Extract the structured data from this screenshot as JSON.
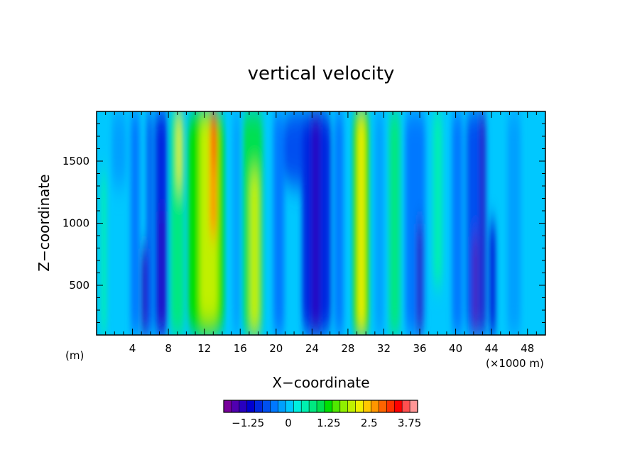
{
  "chart_data": {
    "type": "heatmap",
    "title": "vertical velocity",
    "xlabel": "X−coordinate",
    "ylabel": "Z−coordinate",
    "x_unit_left": "(m)",
    "x_unit_right": "(×1000 m)",
    "xlim": [
      0,
      50
    ],
    "ylim": [
      100,
      1900
    ],
    "x_ticks": [
      4,
      8,
      12,
      16,
      20,
      24,
      28,
      32,
      36,
      40,
      44,
      48
    ],
    "y_ticks": [
      500,
      1000,
      1500
    ],
    "colorbar": {
      "min": -2.0,
      "max": 4.0,
      "step": 0.25,
      "tick_values": [
        -1.25,
        0,
        1.25,
        2.5,
        3.75
      ],
      "tick_labels": [
        "−1.25",
        "0",
        "1.25",
        "2.5",
        "3.75"
      ],
      "colors": [
        "#78009c",
        "#5000b0",
        "#2800c0",
        "#0000d0",
        "#0028e0",
        "#0050f0",
        "#0078ff",
        "#00a0ff",
        "#00c8ff",
        "#00f0e0",
        "#00f0b0",
        "#00e880",
        "#00e050",
        "#00e000",
        "#50e800",
        "#90f000",
        "#c0f000",
        "#f0f000",
        "#ffc800",
        "#ff9600",
        "#ff6400",
        "#ff3200",
        "#ff0000",
        "#ff5050",
        "#ff9696"
      ]
    },
    "background_value": 0.0,
    "columns": [
      {
        "x": 0.8,
        "width": 0.6,
        "z_bottom": 100,
        "z_top": 1400,
        "value": 0.6
      },
      {
        "x": 2.5,
        "width": 1.6,
        "z_bottom": 1300,
        "z_top": 1900,
        "value": -0.25
      },
      {
        "x": 4.3,
        "width": 1.0,
        "z_bottom": 100,
        "z_top": 1900,
        "value": -0.5
      },
      {
        "x": 5.3,
        "width": 0.6,
        "z_bottom": 100,
        "z_top": 800,
        "value": -1.5
      },
      {
        "x": 5.9,
        "width": 0.6,
        "z_bottom": 100,
        "z_top": 1900,
        "value": -0.75
      },
      {
        "x": 7.2,
        "width": 1.4,
        "z_bottom": 100,
        "z_top": 1900,
        "value": -1.0
      },
      {
        "x": 7.3,
        "width": 0.6,
        "z_bottom": 100,
        "z_top": 1100,
        "value": -1.5
      },
      {
        "x": 9.0,
        "width": 1.5,
        "z_bottom": 100,
        "z_top": 1900,
        "value": 0.75
      },
      {
        "x": 9.2,
        "width": 0.5,
        "z_bottom": 1300,
        "z_top": 1900,
        "value": 2.25
      },
      {
        "x": 12.2,
        "width": 4.0,
        "z_bottom": 100,
        "z_top": 1900,
        "value": 1.25
      },
      {
        "x": 12.5,
        "width": 2.0,
        "z_bottom": 200,
        "z_top": 1900,
        "value": 2.0
      },
      {
        "x": 13.0,
        "width": 0.8,
        "z_bottom": 900,
        "z_top": 1900,
        "value": 2.75
      },
      {
        "x": 13.1,
        "width": 0.4,
        "z_bottom": 1450,
        "z_top": 1900,
        "value": 3.5
      },
      {
        "x": 15.6,
        "width": 0.8,
        "z_bottom": 100,
        "z_top": 1900,
        "value": -0.25
      },
      {
        "x": 17.4,
        "width": 2.2,
        "z_bottom": 100,
        "z_top": 1900,
        "value": 1.0
      },
      {
        "x": 17.6,
        "width": 1.0,
        "z_bottom": 100,
        "z_top": 1400,
        "value": 2.0
      },
      {
        "x": 20.3,
        "width": 1.2,
        "z_bottom": 100,
        "z_top": 1900,
        "value": -0.5
      },
      {
        "x": 22.4,
        "width": 3.0,
        "z_bottom": 1300,
        "z_top": 1900,
        "value": -0.75
      },
      {
        "x": 24.5,
        "width": 3.2,
        "z_bottom": 100,
        "z_top": 1900,
        "value": -1.0
      },
      {
        "x": 24.4,
        "width": 0.8,
        "z_bottom": 100,
        "z_top": 1900,
        "value": -1.5
      },
      {
        "x": 27.0,
        "width": 1.0,
        "z_bottom": 100,
        "z_top": 1900,
        "value": -0.5
      },
      {
        "x": 29.5,
        "width": 1.8,
        "z_bottom": 100,
        "z_top": 1900,
        "value": 1.25
      },
      {
        "x": 29.5,
        "width": 0.8,
        "z_bottom": 100,
        "z_top": 1900,
        "value": 2.25
      },
      {
        "x": 31.5,
        "width": 1.0,
        "z_bottom": 100,
        "z_top": 1900,
        "value": -0.25
      },
      {
        "x": 33.2,
        "width": 1.2,
        "z_bottom": 100,
        "z_top": 1900,
        "value": 0.75
      },
      {
        "x": 35.5,
        "width": 2.2,
        "z_bottom": 100,
        "z_top": 1900,
        "value": -0.5
      },
      {
        "x": 36.0,
        "width": 0.6,
        "z_bottom": 100,
        "z_top": 1000,
        "value": -1.5
      },
      {
        "x": 38.0,
        "width": 1.0,
        "z_bottom": 500,
        "z_top": 1900,
        "value": 0.5
      },
      {
        "x": 40.2,
        "width": 1.2,
        "z_bottom": 100,
        "z_top": 1900,
        "value": -0.5
      },
      {
        "x": 42.3,
        "width": 2.2,
        "z_bottom": 100,
        "z_top": 1900,
        "value": -0.75
      },
      {
        "x": 42.2,
        "width": 0.5,
        "z_bottom": 100,
        "z_top": 900,
        "value": -1.75
      },
      {
        "x": 43.0,
        "width": 0.5,
        "z_bottom": 100,
        "z_top": 1900,
        "value": -1.5
      },
      {
        "x": 44.1,
        "width": 0.6,
        "z_bottom": 100,
        "z_top": 1000,
        "value": -1.25
      },
      {
        "x": 46.5,
        "width": 1.5,
        "z_bottom": 100,
        "z_top": 1900,
        "value": -0.25
      }
    ]
  }
}
